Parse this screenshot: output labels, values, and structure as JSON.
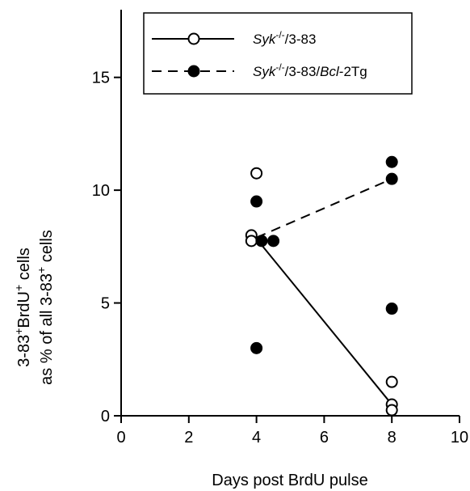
{
  "chart_data": {
    "type": "scatter",
    "title": "",
    "xlabel": "Days post BrdU pulse",
    "ylabel_line1": "3-83+BrdU+ cells",
    "ylabel_line2": "as % of all 3-83+ cells",
    "xlim": [
      0,
      10
    ],
    "ylim": [
      0,
      18
    ],
    "x_ticks": [
      0,
      2,
      4,
      6,
      8,
      10
    ],
    "y_ticks": [
      0,
      5,
      10,
      15
    ],
    "grid": false,
    "legend_position": "top-right",
    "series": [
      {
        "name": "Syk-/-/3-83",
        "legend_italic": "Syk",
        "legend_sup": "-/-",
        "legend_rest": "/3-83",
        "marker": "open-circle",
        "line_style": "solid",
        "points": [
          {
            "x": 3.85,
            "y": 8.0
          },
          {
            "x": 3.85,
            "y": 7.75
          },
          {
            "x": 4.0,
            "y": 10.75
          },
          {
            "x": 8.0,
            "y": 1.5
          },
          {
            "x": 8.0,
            "y": 0.5
          },
          {
            "x": 8.0,
            "y": 0.25
          }
        ],
        "mean_line": [
          {
            "x": 4.0,
            "y": 7.85
          },
          {
            "x": 8.0,
            "y": 0.5
          }
        ]
      },
      {
        "name": "Syk-/-/3-83/Bcl-2Tg",
        "legend_italic": "Syk",
        "legend_sup": "-/-",
        "legend_rest_1": "/3-83/",
        "legend_italic_2": "Bcl",
        "legend_rest_2": "-2Tg",
        "marker": "filled-circle",
        "line_style": "dashed",
        "points": [
          {
            "x": 4.0,
            "y": 9.5
          },
          {
            "x": 4.15,
            "y": 7.75
          },
          {
            "x": 4.5,
            "y": 7.75
          },
          {
            "x": 4.0,
            "y": 3.0
          },
          {
            "x": 8.0,
            "y": 11.25
          },
          {
            "x": 8.0,
            "y": 10.5
          },
          {
            "x": 8.0,
            "y": 4.75
          }
        ],
        "mean_line": [
          {
            "x": 4.0,
            "y": 7.9
          },
          {
            "x": 8.0,
            "y": 10.5
          }
        ]
      }
    ]
  }
}
